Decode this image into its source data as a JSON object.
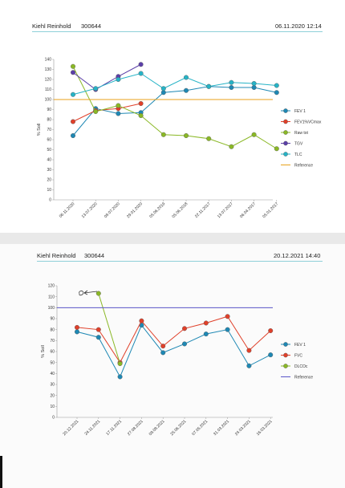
{
  "page1": {
    "patient": "Kiehl Reinhold",
    "id": "300644",
    "datetime": "06.11.2020 12:14"
  },
  "page2": {
    "patient": "Kiehl Reinhold",
    "id": "300644",
    "datetime": "20.12.2021 14:40"
  },
  "chart_data": [
    {
      "type": "line",
      "xlabel": "",
      "ylabel": "% Soll",
      "ylim": [
        0,
        140
      ],
      "yticks": [
        0,
        10,
        20,
        30,
        40,
        50,
        60,
        70,
        80,
        90,
        100,
        110,
        120,
        130,
        140
      ],
      "x": [
        "06.11.2020",
        "13.07.2020",
        "09.07.2020",
        "29.01.2020",
        "05.06.2019",
        "05.06.2018",
        "22.11.2017",
        "13.07.2017",
        "06.04.2017",
        "05.01.2017"
      ],
      "legend_position": "right",
      "series": [
        {
          "name": "FEV 1",
          "color": "#1e88b4",
          "values": [
            64,
            91,
            86,
            87,
            107,
            109,
            113,
            112,
            112,
            107
          ]
        },
        {
          "name": "FEV1%VCmax",
          "color": "#e0402a",
          "values": [
            78,
            89,
            91,
            96,
            null,
            null,
            null,
            null,
            null,
            null
          ]
        },
        {
          "name": "Raw tot",
          "color": "#8ab825",
          "values": [
            133,
            88,
            94,
            84,
            65,
            64,
            61,
            53,
            65,
            51
          ]
        },
        {
          "name": "TGV",
          "color": "#5b3fa8",
          "values": [
            127,
            110,
            123,
            135,
            null,
            null,
            null,
            null,
            null,
            null
          ]
        },
        {
          "name": "TLC",
          "color": "#26b3c6",
          "values": [
            105,
            111,
            120,
            126,
            111,
            122,
            113,
            117,
            116,
            114
          ]
        },
        {
          "name": "Reference",
          "color": "#e8a21b",
          "values": [
            100,
            100,
            100,
            100,
            100,
            100,
            100,
            100,
            100,
            100
          ],
          "marker": false
        }
      ]
    },
    {
      "type": "line",
      "xlabel": "",
      "ylabel": "% Soll",
      "ylim": [
        0,
        120
      ],
      "yticks": [
        0,
        10,
        20,
        30,
        40,
        50,
        60,
        70,
        80,
        90,
        100,
        110,
        120
      ],
      "x": [
        "20.12.2021",
        "24.11.2021",
        "17.11.2021",
        "27.08.2021",
        "09.08.2021",
        "25.06.2021",
        "07.05.2021",
        "31.03.2021",
        "24.03.2021",
        "16.03.2021"
      ],
      "legend_position": "right",
      "series": [
        {
          "name": "FEV 1",
          "color": "#1e88b4",
          "values": [
            78,
            73,
            37,
            84,
            59,
            67,
            76,
            80,
            47,
            57
          ]
        },
        {
          "name": "FVC",
          "color": "#e0402a",
          "values": [
            82,
            80,
            50,
            88,
            65,
            81,
            86,
            92,
            61,
            79
          ]
        },
        {
          "name": "DLCOc",
          "color": "#8ab825",
          "values": [
            null,
            113,
            49,
            null,
            null,
            null,
            null,
            null,
            null,
            null
          ]
        },
        {
          "name": "Reference",
          "color": "#5a55c8",
          "values": [
            100,
            100,
            100,
            100,
            100,
            100,
            100,
            100,
            100,
            100
          ],
          "marker": false
        }
      ]
    }
  ]
}
